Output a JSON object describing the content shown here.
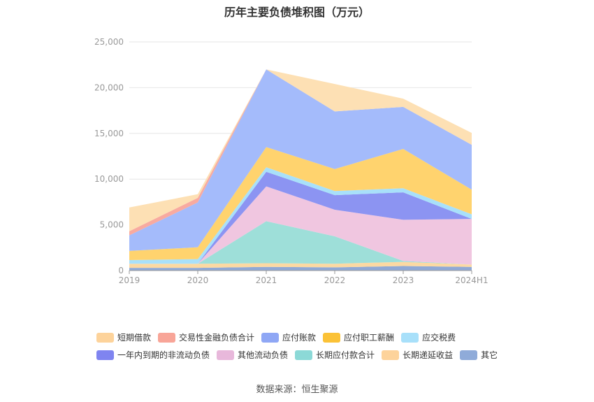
{
  "chart_data": {
    "type": "area",
    "title": "历年主要负债堆积图（万元）",
    "source": "数据来源：恒生聚源",
    "categories": [
      "2019",
      "2020",
      "2021",
      "2022",
      "2023",
      "2024H1"
    ],
    "y_ticks": [
      "0",
      "5,000",
      "10,000",
      "15,000",
      "20,000",
      "25,000"
    ],
    "ylim": [
      0,
      25000
    ],
    "grid": true,
    "legend_position": "bottom",
    "stacked": true,
    "series": [
      {
        "name": "其它",
        "color": "#8fa9d6",
        "values": [
          300,
          300,
          400,
          350,
          500,
          400
        ]
      },
      {
        "name": "长期递延收益",
        "color": "#fcd9a2",
        "values": [
          450,
          450,
          400,
          400,
          450,
          250
        ]
      },
      {
        "name": "长期应付款合计",
        "color": "#9edfd9",
        "values": [
          0,
          0,
          4600,
          3000,
          100,
          0
        ]
      },
      {
        "name": "其他流动负债",
        "color": "#f0c6e0",
        "values": [
          0,
          0,
          3800,
          2900,
          4500,
          5000
        ]
      },
      {
        "name": "一年内到期的非流动负债",
        "color": "#8c94f2",
        "values": [
          0,
          0,
          1600,
          1600,
          3000,
          0
        ]
      },
      {
        "name": "应交税费",
        "color": "#a8e0fa",
        "values": [
          400,
          500,
          500,
          450,
          450,
          500
        ]
      },
      {
        "name": "应付职工薪酬",
        "color": "#ffd36e",
        "values": [
          1000,
          1300,
          2200,
          2400,
          4300,
          2700
        ]
      },
      {
        "name": "应付账款",
        "color": "#a4bbfb",
        "values": [
          1700,
          4900,
          8500,
          6300,
          4600,
          4900
        ]
      },
      {
        "name": "交易性金融负债合计",
        "color": "#f8aaa0",
        "values": [
          450,
          500,
          0,
          0,
          0,
          0
        ]
      },
      {
        "name": "短期借款",
        "color": "#fde0b4",
        "values": [
          2600,
          400,
          0,
          3000,
          900,
          1300
        ]
      }
    ],
    "legend_rows": [
      [
        {
          "name": "短期借款",
          "color": "#fdd39b"
        },
        {
          "name": "交易性金融负债合计",
          "color": "#f8a598"
        },
        {
          "name": "应付账款",
          "color": "#8fa7f5"
        },
        {
          "name": "应付职工薪酬",
          "color": "#fbc237"
        },
        {
          "name": "应交税费",
          "color": "#a8e0fa"
        }
      ],
      [
        {
          "name": "一年内到期的非流动负债",
          "color": "#7f84f0"
        },
        {
          "name": "其他流动负债",
          "color": "#e8b8db"
        },
        {
          "name": "长期应付款合计",
          "color": "#8cd9d7"
        },
        {
          "name": "长期递延收益",
          "color": "#fdd39b"
        },
        {
          "name": "其它",
          "color": "#8fabd9"
        }
      ]
    ]
  }
}
